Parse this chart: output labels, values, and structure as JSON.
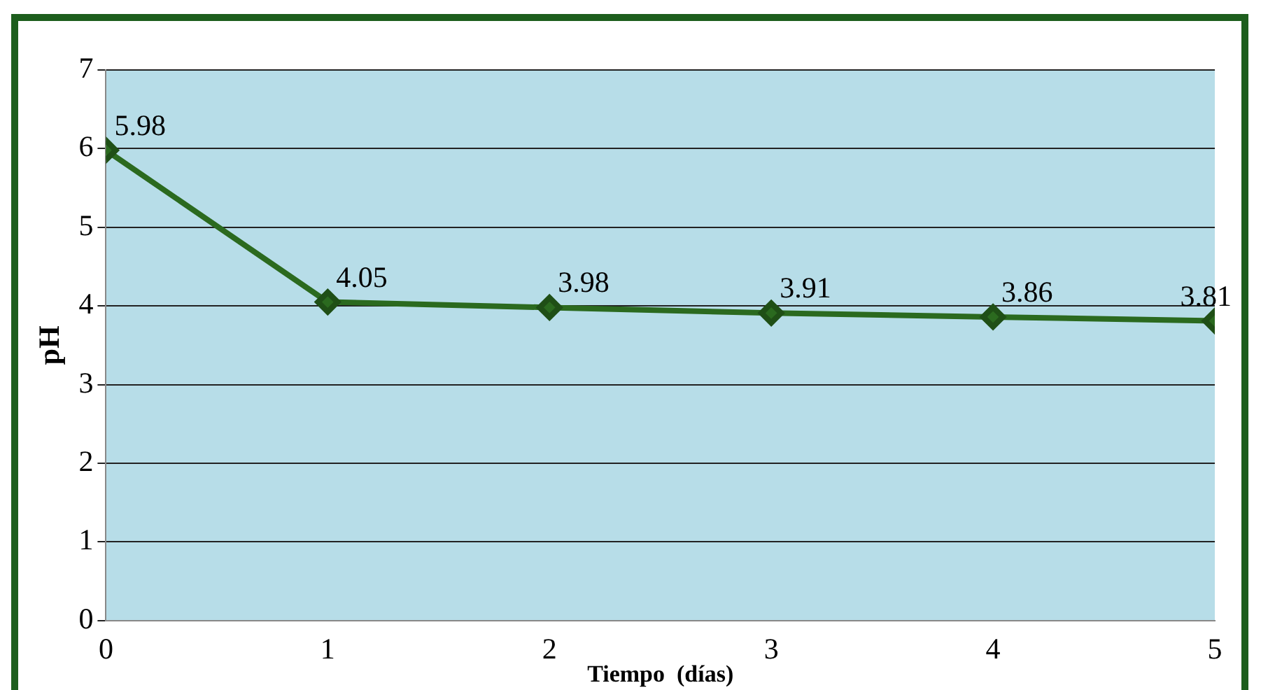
{
  "chart_data": {
    "type": "line",
    "xlabel": "Tiempo  (días)",
    "ylabel": "pH",
    "x": [
      0,
      1,
      2,
      3,
      4,
      5
    ],
    "series": [
      {
        "color": "#2b6a1f",
        "values": [
          5.98,
          4.05,
          3.98,
          3.91,
          3.86,
          3.81
        ]
      }
    ],
    "xlim": [
      0,
      5
    ],
    "xticks": [
      0,
      1,
      2,
      3,
      4,
      5
    ],
    "ylim": [
      0,
      7
    ],
    "yticks": [
      0,
      1,
      2,
      3,
      4,
      5,
      6,
      7
    ],
    "grid": "y",
    "marker": "diamond",
    "line_style": "solid",
    "data_labels": true
  }
}
